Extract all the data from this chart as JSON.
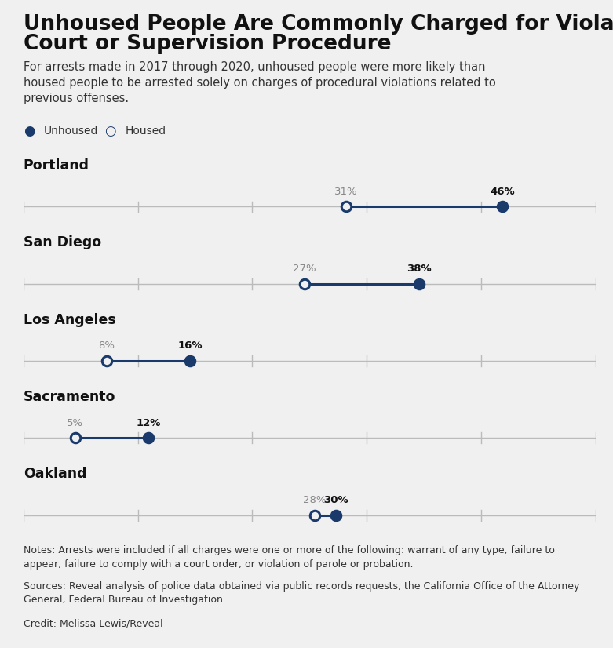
{
  "title_line1": "Unhoused People Are Commonly Charged for Violating",
  "title_line2": "Court or Supervision Procedure",
  "subtitle": "For arrests made in 2017 through 2020, unhoused people were more likely than\nhoused people to be arrested solely on charges of procedural violations related to\nprevious offenses.",
  "legend_unhoused": "Unhoused",
  "legend_housed": "Housed",
  "cities": [
    "Portland",
    "San Diego",
    "Los Angeles",
    "Sacramento",
    "Oakland"
  ],
  "housed_pct": [
    31,
    27,
    8,
    5,
    28
  ],
  "unhoused_pct": [
    46,
    38,
    16,
    12,
    30
  ],
  "x_min": 0,
  "x_max": 55,
  "x_ticks": [
    0,
    11,
    22,
    33,
    44,
    55
  ],
  "dot_color_filled": "#1a3a6b",
  "dot_color_open": "#1a3a6b",
  "line_color": "#1a3a6b",
  "axis_color": "#bbbbbb",
  "background_color": "#f0f0f0",
  "label_color_housed": "#888888",
  "label_color_unhoused": "#111111",
  "notes": "Notes: Arrests were included if all charges were one or more of the following: warrant of any type, failure to\nappear, failure to comply with a court order, or violation of parole or probation.",
  "sources": "Sources: Reveal analysis of police data obtained via public records requests, the California Office of the Attorney\nGeneral, Federal Bureau of Investigation",
  "credit": "Credit: Melissa Lewis/Reveal",
  "title_fontsize": 19,
  "subtitle_fontsize": 10.5,
  "city_fontsize": 12.5,
  "pct_fontsize": 9.5,
  "note_fontsize": 9,
  "legend_fontsize": 10
}
